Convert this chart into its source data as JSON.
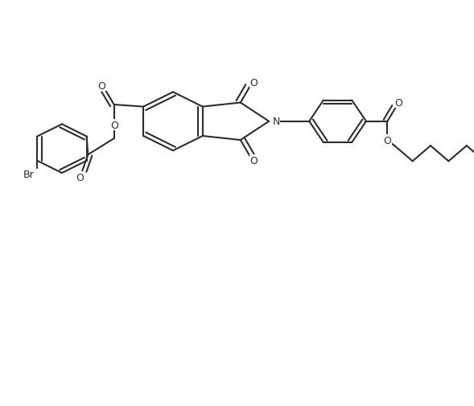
{
  "figsize": [
    5.89,
    5.06
  ],
  "dpi": 100,
  "background_color": "#ffffff",
  "line_color": "#2d2d2d",
  "line_width": 1.5,
  "font_size": 9,
  "atoms": {
    "N_label": "N",
    "O_labels": [
      "O",
      "O",
      "O",
      "O",
      "O",
      "O"
    ],
    "Br_label": "Br"
  }
}
